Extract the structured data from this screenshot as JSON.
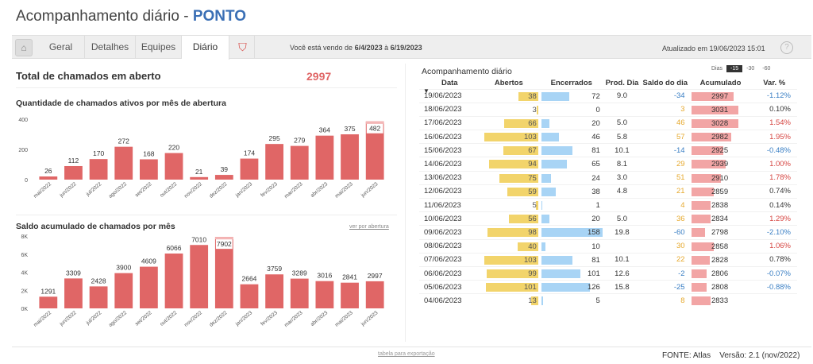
{
  "header": {
    "title": "Acompanhamento diário - ",
    "title_accent": "PONTO"
  },
  "tabs": [
    "Geral",
    "Detalhes",
    "Equipes",
    "Diário"
  ],
  "toolbar": {
    "viewing_prefix": "Você está vendo de ",
    "date_from": "6/4/2023",
    "date_sep": " à ",
    "date_to": "6/19/2023",
    "updated": "Atualizado em 19/06/2023 15:01"
  },
  "summary": {
    "label": "Total de chamados em aberto",
    "value": "2997"
  },
  "colors": {
    "bar": "#e06666",
    "bar_highlight": "#f4b6b6",
    "yellow": "#f2d46b",
    "blue": "#a8d4f5",
    "pink": "#f2a5a5"
  },
  "chart_data": [
    {
      "type": "bar",
      "title": "Quantidade de chamados ativos por mês de abertura",
      "categories": [
        "mai/2022",
        "jun/2022",
        "jul/2022",
        "ago/2022",
        "set/2022",
        "out/2022",
        "nov/2022",
        "dez/2022",
        "jan/2023",
        "fev/2023",
        "mar/2023",
        "abr/2023",
        "mai/2023",
        "jun/2023"
      ],
      "values": [
        26,
        112,
        170,
        272,
        168,
        220,
        21,
        39,
        174,
        295,
        279,
        364,
        375,
        482
      ],
      "yticks": [
        "0",
        "200",
        "400"
      ],
      "ylim": [
        0,
        500
      ]
    },
    {
      "type": "bar",
      "title": "Saldo acumulado de chamados por mês",
      "link": "ver por abertura",
      "categories": [
        "mai/2022",
        "jun/2022",
        "jul/2022",
        "ago/2022",
        "set/2022",
        "out/2022",
        "nov/2022",
        "dez/2022",
        "jan/2023",
        "fev/2023",
        "mar/2023",
        "abr/2023",
        "mai/2023",
        "jun/2023"
      ],
      "values": [
        1291,
        3309,
        2428,
        3900,
        4609,
        6066,
        7010,
        7902,
        2664,
        3759,
        3289,
        3016,
        2841,
        2997
      ],
      "yticks": [
        "0K",
        "2K",
        "4K",
        "6K",
        "8K"
      ],
      "ylim": [
        0,
        8000
      ]
    }
  ],
  "daily": {
    "title": "Acompanhamento diário",
    "days_label": "Dias",
    "days_options": [
      "-15",
      "-30",
      "-60"
    ],
    "columns": [
      "Data",
      "Abertos",
      "Encerrados",
      "Prod. Dia",
      "Saldo do dia",
      "Acumulado",
      "Var. %"
    ],
    "rows": [
      {
        "date": "19/06/2023",
        "open": 38,
        "closed": 72,
        "prod": "9.0",
        "saldo": -34,
        "acum": 2997,
        "var": "-1.12%"
      },
      {
        "date": "18/06/2023",
        "open": 3,
        "closed": 0,
        "prod": "",
        "saldo": 3,
        "acum": 3031,
        "var": "0.10%"
      },
      {
        "date": "17/06/2023",
        "open": 66,
        "closed": 20,
        "prod": "5.0",
        "saldo": 46,
        "acum": 3028,
        "var": "1.54%"
      },
      {
        "date": "16/06/2023",
        "open": 103,
        "closed": 46,
        "prod": "5.8",
        "saldo": 57,
        "acum": 2982,
        "var": "1.95%"
      },
      {
        "date": "15/06/2023",
        "open": 67,
        "closed": 81,
        "prod": "10.1",
        "saldo": -14,
        "acum": 2925,
        "var": "-0.48%"
      },
      {
        "date": "14/06/2023",
        "open": 94,
        "closed": 65,
        "prod": "8.1",
        "saldo": 29,
        "acum": 2939,
        "var": "1.00%"
      },
      {
        "date": "13/06/2023",
        "open": 75,
        "closed": 24,
        "prod": "3.0",
        "saldo": 51,
        "acum": 2910,
        "var": "1.78%"
      },
      {
        "date": "12/06/2023",
        "open": 59,
        "closed": 38,
        "prod": "4.8",
        "saldo": 21,
        "acum": 2859,
        "var": "0.74%"
      },
      {
        "date": "11/06/2023",
        "open": 5,
        "closed": 1,
        "prod": "",
        "saldo": 4,
        "acum": 2838,
        "var": "0.14%"
      },
      {
        "date": "10/06/2023",
        "open": 56,
        "closed": 20,
        "prod": "5.0",
        "saldo": 36,
        "acum": 2834,
        "var": "1.29%"
      },
      {
        "date": "09/06/2023",
        "open": 98,
        "closed": 158,
        "prod": "19.8",
        "saldo": -60,
        "acum": 2798,
        "var": "-2.10%"
      },
      {
        "date": "08/06/2023",
        "open": 40,
        "closed": 10,
        "prod": "",
        "saldo": 30,
        "acum": 2858,
        "var": "1.06%"
      },
      {
        "date": "07/06/2023",
        "open": 103,
        "closed": 81,
        "prod": "10.1",
        "saldo": 22,
        "acum": 2828,
        "var": "0.78%"
      },
      {
        "date": "06/06/2023",
        "open": 99,
        "closed": 101,
        "prod": "12.6",
        "saldo": -2,
        "acum": 2806,
        "var": "-0.07%"
      },
      {
        "date": "05/06/2023",
        "open": 101,
        "closed": 126,
        "prod": "15.8",
        "saldo": -25,
        "acum": 2808,
        "var": "-0.88%"
      },
      {
        "date": "04/06/2023",
        "open": 13,
        "closed": 5,
        "prod": "",
        "saldo": 8,
        "acum": 2833,
        "var": ""
      }
    ]
  },
  "footer": {
    "export": "tabela para exportação",
    "fonte": "FONTE: Atlas",
    "version": "Versão: 2.1 (nov/2022)"
  }
}
